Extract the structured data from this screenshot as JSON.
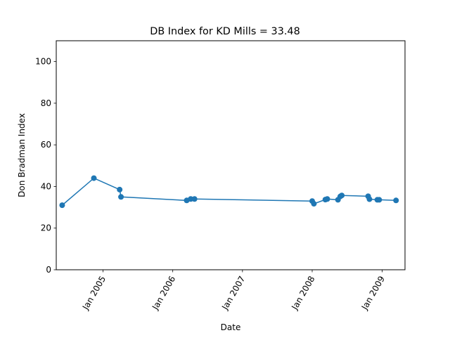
{
  "chart_data": {
    "type": "line",
    "title": "DB Index for KD Mills = 33.48",
    "xlabel": "Date",
    "ylabel": "Don Bradman Index",
    "xlim": [
      "2004-05-01",
      "2009-05-01"
    ],
    "ylim": [
      0,
      110
    ],
    "grid": false,
    "color": "#1f77b4",
    "y_ticks": [
      0,
      20,
      40,
      60,
      80,
      100
    ],
    "x_ticks": [
      {
        "date": "2005-01-01",
        "label": "Jan 2005"
      },
      {
        "date": "2006-01-01",
        "label": "Jan 2006"
      },
      {
        "date": "2007-01-01",
        "label": "Jan 2007"
      },
      {
        "date": "2008-01-01",
        "label": "Jan 2008"
      },
      {
        "date": "2009-01-01",
        "label": "Jan 2009"
      }
    ],
    "points": [
      {
        "x": "2004-06-01",
        "y": 31.0
      },
      {
        "x": "2004-11-14",
        "y": 44.0
      },
      {
        "x": "2005-03-29",
        "y": 38.5
      },
      {
        "x": "2005-04-05",
        "y": 35.0
      },
      {
        "x": "2006-03-15",
        "y": 33.3
      },
      {
        "x": "2006-04-05",
        "y": 34.0
      },
      {
        "x": "2006-04-25",
        "y": 34.0
      },
      {
        "x": "2008-01-01",
        "y": 33.0
      },
      {
        "x": "2008-01-10",
        "y": 31.7
      },
      {
        "x": "2008-03-10",
        "y": 33.7
      },
      {
        "x": "2008-03-20",
        "y": 34.0
      },
      {
        "x": "2008-05-15",
        "y": 33.6
      },
      {
        "x": "2008-05-27",
        "y": 35.2
      },
      {
        "x": "2008-06-04",
        "y": 35.7
      },
      {
        "x": "2008-10-20",
        "y": 35.3
      },
      {
        "x": "2008-10-27",
        "y": 33.9
      },
      {
        "x": "2008-12-07",
        "y": 33.6
      },
      {
        "x": "2008-12-17",
        "y": 33.6
      },
      {
        "x": "2009-03-15",
        "y": 33.3
      }
    ]
  }
}
